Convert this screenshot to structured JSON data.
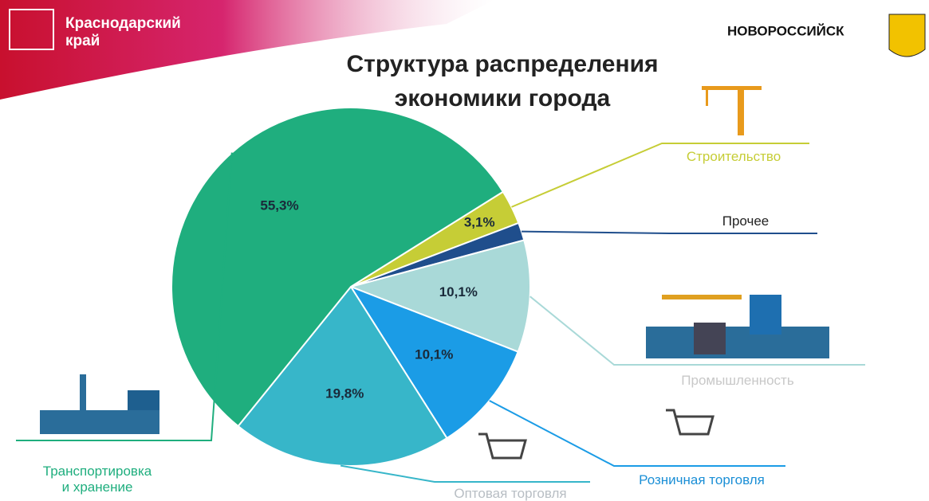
{
  "header": {
    "region": "Краснодарский край",
    "city": "НОВОРОССИЙСК"
  },
  "chart_data": {
    "type": "pie",
    "title_lines": [
      "Структура распределения",
      "экономики города"
    ],
    "categories": [
      "Строительство",
      "Прочее",
      "Промышленность",
      "Розничная торговля",
      "Оптовая торговля",
      "Транспортировка и хранение"
    ],
    "values": [
      3.1,
      1.6,
      10.1,
      10.1,
      19.8,
      55.3
    ],
    "value_labels": [
      "3,1%",
      null,
      "10,1%",
      "10,1%",
      "19,8%",
      "55,3%"
    ],
    "colors": [
      "#c6cd36",
      "#1f4e8c",
      "#a9d9d8",
      "#1b9ce6",
      "#37b6c9",
      "#1fae7e"
    ],
    "label_colors": [
      "#c6cd36",
      "#222222",
      "#c8c8c8",
      "#1b8fd6",
      "#b8bec4",
      "#1fae7e"
    ]
  }
}
